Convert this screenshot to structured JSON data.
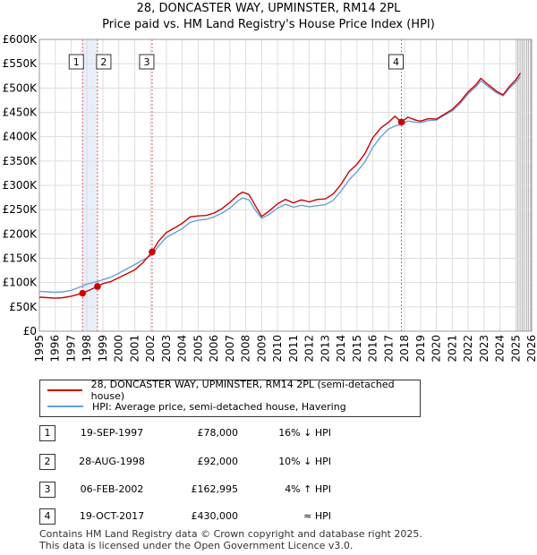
{
  "title_line1": "28, DONCASTER WAY, UPMINSTER, RM14 2PL",
  "title_line2": "Price paid vs. HM Land Registry's House Price Index (HPI)",
  "colors": {
    "property": "#cc0000",
    "hpi": "#6a9fd4",
    "marker_line": "#e06060",
    "grid": "#dddddd",
    "shade": "#e8eef8"
  },
  "chart_data": {
    "type": "line",
    "title": "28, DONCASTER WAY, UPMINSTER, RM14 2PL — Price paid vs. HM Land Registry's House Price Index (HPI)",
    "xlim": [
      1995,
      2026
    ],
    "ylim": [
      0,
      600000
    ],
    "x_ticks": [
      "1995",
      "1996",
      "1997",
      "1998",
      "1999",
      "2000",
      "2001",
      "2002",
      "2003",
      "2004",
      "2005",
      "2006",
      "2007",
      "2008",
      "2009",
      "2010",
      "2011",
      "2012",
      "2013",
      "2014",
      "2015",
      "2016",
      "2017",
      "2018",
      "2019",
      "2020",
      "2021",
      "2022",
      "2023",
      "2024",
      "2025",
      "2026"
    ],
    "y_ticks": [
      "£0",
      "£50K",
      "£100K",
      "£150K",
      "£200K",
      "£250K",
      "£300K",
      "£350K",
      "£400K",
      "£450K",
      "£500K",
      "£550K",
      "£600K"
    ],
    "future_data_from": 2025.0,
    "series": [
      {
        "name": "28, DONCASTER WAY, UPMINSTER, RM14 2PL (semi-detached house)",
        "color": "#cc0000",
        "points": [
          [
            1995,
            70000
          ],
          [
            1995.5,
            69000
          ],
          [
            1996,
            68000
          ],
          [
            1996.5,
            69000
          ],
          [
            1997,
            72000
          ],
          [
            1997.72,
            78000
          ],
          [
            1998,
            82000
          ],
          [
            1998.66,
            92000
          ],
          [
            1999,
            98000
          ],
          [
            1999.5,
            102000
          ],
          [
            2000,
            110000
          ],
          [
            2000.5,
            118000
          ],
          [
            2001,
            126000
          ],
          [
            2001.5,
            140000
          ],
          [
            2002.1,
            162995
          ],
          [
            2002.5,
            185000
          ],
          [
            2003,
            203000
          ],
          [
            2003.5,
            212000
          ],
          [
            2004,
            222000
          ],
          [
            2004.5,
            235000
          ],
          [
            2005,
            237000
          ],
          [
            2005.5,
            238000
          ],
          [
            2006,
            243000
          ],
          [
            2006.5,
            252000
          ],
          [
            2007,
            265000
          ],
          [
            2007.5,
            280000
          ],
          [
            2007.8,
            286000
          ],
          [
            2008.2,
            281000
          ],
          [
            2008.6,
            258000
          ],
          [
            2009,
            236000
          ],
          [
            2009.5,
            248000
          ],
          [
            2010,
            262000
          ],
          [
            2010.5,
            271000
          ],
          [
            2011,
            264000
          ],
          [
            2011.5,
            270000
          ],
          [
            2012,
            266000
          ],
          [
            2012.5,
            271000
          ],
          [
            2013,
            272000
          ],
          [
            2013.5,
            282000
          ],
          [
            2014,
            302000
          ],
          [
            2014.5,
            328000
          ],
          [
            2015,
            343000
          ],
          [
            2015.5,
            365000
          ],
          [
            2016,
            398000
          ],
          [
            2016.5,
            418000
          ],
          [
            2017,
            430000
          ],
          [
            2017.4,
            442000
          ],
          [
            2017.8,
            430000
          ],
          [
            2018.2,
            440000
          ],
          [
            2018.7,
            434000
          ],
          [
            2019,
            432000
          ],
          [
            2019.5,
            437000
          ],
          [
            2020,
            436000
          ],
          [
            2020.5,
            446000
          ],
          [
            2021,
            456000
          ],
          [
            2021.5,
            472000
          ],
          [
            2022,
            492000
          ],
          [
            2022.5,
            507000
          ],
          [
            2022.8,
            520000
          ],
          [
            2023.3,
            506000
          ],
          [
            2023.8,
            493000
          ],
          [
            2024.2,
            486000
          ],
          [
            2024.6,
            503000
          ],
          [
            2025.0,
            517000
          ],
          [
            2025.3,
            531000
          ]
        ]
      },
      {
        "name": "HPI: Average price, semi-detached house, Havering",
        "color": "#6a9fd4",
        "points": [
          [
            1995,
            82000
          ],
          [
            1995.5,
            81000
          ],
          [
            1996,
            80000
          ],
          [
            1996.5,
            81000
          ],
          [
            1997,
            84000
          ],
          [
            1997.72,
            93000
          ],
          [
            1998,
            97000
          ],
          [
            1998.66,
            102000
          ],
          [
            1999,
            106000
          ],
          [
            1999.5,
            111000
          ],
          [
            2000,
            119000
          ],
          [
            2000.5,
            128000
          ],
          [
            2001,
            137000
          ],
          [
            2001.5,
            146000
          ],
          [
            2002.1,
            157000
          ],
          [
            2002.5,
            175000
          ],
          [
            2003,
            193000
          ],
          [
            2003.5,
            202000
          ],
          [
            2004,
            211000
          ],
          [
            2004.5,
            224000
          ],
          [
            2005,
            228000
          ],
          [
            2005.5,
            230000
          ],
          [
            2006,
            235000
          ],
          [
            2006.5,
            243000
          ],
          [
            2007,
            253000
          ],
          [
            2007.5,
            268000
          ],
          [
            2007.8,
            274000
          ],
          [
            2008.2,
            270000
          ],
          [
            2008.6,
            249000
          ],
          [
            2009,
            232000
          ],
          [
            2009.5,
            241000
          ],
          [
            2010,
            253000
          ],
          [
            2010.5,
            261000
          ],
          [
            2011,
            255000
          ],
          [
            2011.5,
            259000
          ],
          [
            2012,
            256000
          ],
          [
            2012.5,
            258000
          ],
          [
            2013,
            260000
          ],
          [
            2013.5,
            269000
          ],
          [
            2014,
            288000
          ],
          [
            2014.5,
            311000
          ],
          [
            2015,
            328000
          ],
          [
            2015.5,
            348000
          ],
          [
            2016,
            378000
          ],
          [
            2016.5,
            400000
          ],
          [
            2017,
            416000
          ],
          [
            2017.4,
            422000
          ],
          [
            2017.8,
            425000
          ],
          [
            2018.2,
            432000
          ],
          [
            2018.7,
            430000
          ],
          [
            2019,
            429000
          ],
          [
            2019.5,
            433000
          ],
          [
            2020,
            434000
          ],
          [
            2020.5,
            444000
          ],
          [
            2021,
            453000
          ],
          [
            2021.5,
            468000
          ],
          [
            2022,
            488000
          ],
          [
            2022.5,
            503000
          ],
          [
            2022.8,
            515000
          ],
          [
            2023.3,
            502000
          ],
          [
            2023.8,
            490000
          ],
          [
            2024.2,
            484000
          ],
          [
            2024.6,
            500000
          ],
          [
            2025.0,
            512000
          ],
          [
            2025.3,
            524000
          ]
        ]
      }
    ],
    "sales": [
      {
        "id": "1",
        "x": 1997.72,
        "price": 78000
      },
      {
        "id": "2",
        "x": 1998.66,
        "price": 92000
      },
      {
        "id": "3",
        "x": 2002.1,
        "price": 162995
      },
      {
        "id": "4",
        "x": 2017.8,
        "price": 430000
      }
    ]
  },
  "legend": {
    "property_label": "28, DONCASTER WAY, UPMINSTER, RM14 2PL (semi-detached house)",
    "hpi_label": "HPI: Average price, semi-detached house, Havering"
  },
  "transactions": [
    {
      "num": "1",
      "date": "19-SEP-1997",
      "price": "£78,000",
      "hpi": "16% ↓ HPI"
    },
    {
      "num": "2",
      "date": "28-AUG-1998",
      "price": "£92,000",
      "hpi": "10% ↓ HPI"
    },
    {
      "num": "3",
      "date": "06-FEB-2002",
      "price": "£162,995",
      "hpi": "4% ↑ HPI"
    },
    {
      "num": "4",
      "date": "19-OCT-2017",
      "price": "£430,000",
      "hpi": "≈ HPI"
    }
  ],
  "footer_line1": "Contains HM Land Registry data © Crown copyright and database right 2025.",
  "footer_line2": "This data is licensed under the Open Government Licence v3.0."
}
